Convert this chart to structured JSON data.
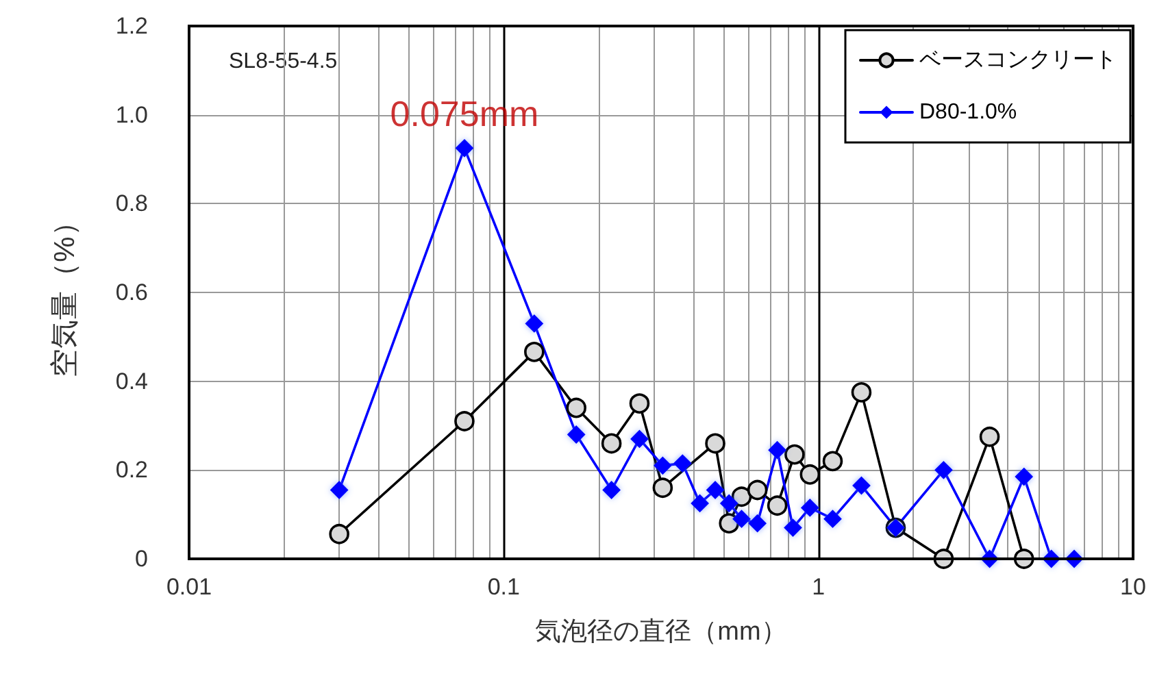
{
  "chart_data": {
    "type": "line",
    "xlabel": "気泡径の直径（mm）",
    "ylabel": "空気量（%）",
    "log": "x",
    "xlim": [
      0.01,
      10
    ],
    "xticks": [
      0.01,
      0.1,
      1,
      10
    ],
    "ylim": [
      0,
      1.2
    ],
    "yticks": [
      0,
      0.2,
      0.4,
      0.6,
      0.8,
      {
        "value": 1,
        "label": "1.0"
      },
      1.2
    ],
    "grid": true,
    "legend": "top right",
    "line_style": "solid",
    "annotations": [
      "SL8-55-4.5",
      {
        "text": "0.075mm",
        "x": 0.075,
        "y": 0.925
      }
    ],
    "series": [
      {
        "name": "ベースコンクリート",
        "color": "#000000",
        "marker": "circle",
        "x": [
          0.03,
          0.075,
          0.125,
          0.17,
          0.22,
          0.27,
          0.32,
          0.47,
          0.52,
          0.57,
          0.64,
          0.74,
          0.84,
          0.94,
          1.11,
          1.37,
          1.76,
          2.5,
          3.5,
          4.5
        ],
        "values": [
          0.056,
          0.31,
          0.466,
          0.34,
          0.26,
          0.35,
          0.16,
          0.26,
          0.08,
          0.14,
          0.155,
          0.12,
          0.235,
          0.19,
          0.22,
          0.375,
          0.07,
          0,
          0.275,
          0
        ]
      },
      {
        "name": "D80-1.0%",
        "color": "#0000ff",
        "marker": "diamond",
        "x": [
          0.03,
          0.075,
          0.125,
          0.17,
          0.22,
          0.27,
          0.32,
          0.37,
          0.42,
          0.47,
          0.52,
          0.57,
          0.64,
          0.74,
          0.83,
          0.94,
          1.11,
          1.37,
          1.76,
          2.5,
          3.5,
          4.5,
          5.5,
          6.5
        ],
        "values": [
          0.155,
          0.925,
          0.53,
          0.28,
          0.155,
          0.27,
          0.21,
          0.215,
          0.125,
          0.155,
          0.125,
          0.09,
          0.08,
          0.245,
          0.07,
          0.115,
          0.09,
          0.165,
          0.07,
          0.2,
          0,
          0.185,
          0,
          0
        ]
      }
    ]
  }
}
